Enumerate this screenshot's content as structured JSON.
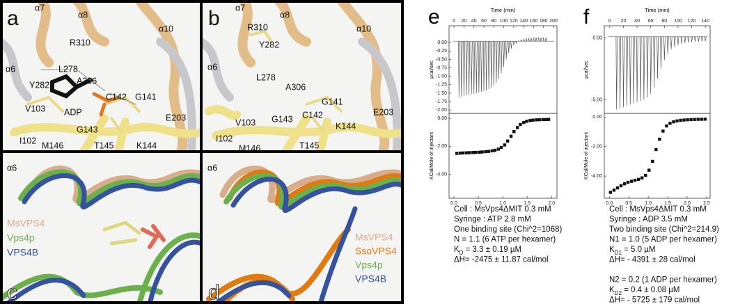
{
  "panels": [
    {
      "letter": "a",
      "labels": [
        "α7",
        "α8",
        "α10",
        "R310",
        "α6",
        "L278",
        "A306",
        "Y282",
        "C142",
        "G141",
        "ADP",
        "V103",
        "E203",
        "G143",
        "I102",
        "M146",
        "T145",
        "K144"
      ]
    },
    {
      "letter": "b",
      "labels": [
        "α7",
        "α8",
        "α10",
        "R310",
        "Y282",
        "α6",
        "L278",
        "A306",
        "G141",
        "C142",
        "V103",
        "G143",
        "E203",
        "K144",
        "I102",
        "M146",
        "T145"
      ]
    },
    {
      "letter": "c",
      "labels": [
        "α6"
      ],
      "legend": [
        {
          "name": "MsVPS4",
          "color": "#d8ad8c"
        },
        {
          "name": "Vps4p",
          "color": "#6cb04e"
        },
        {
          "name": "VPS4B",
          "color": "#34529e"
        }
      ]
    },
    {
      "letter": "d",
      "labels": [
        "α6"
      ],
      "legend": [
        {
          "name": "MsVPS4",
          "color": "#d8ad8c"
        },
        {
          "name": "SsoVPS4",
          "color": "#e07b12"
        },
        {
          "name": "Vps4p",
          "color": "#6cb04e"
        },
        {
          "name": "VPS4B",
          "color": "#34529e"
        }
      ]
    }
  ],
  "chart_data": [
    {
      "type": "spikes",
      "panel_label": "e",
      "x_label": "Time (min)",
      "y_label": "µcal/sec",
      "color": "#555555",
      "x": [
        10,
        15,
        20,
        25,
        30,
        35,
        40,
        45,
        50,
        55,
        60,
        65,
        70,
        75,
        80,
        85,
        90,
        95,
        100,
        105,
        110,
        115,
        120,
        125,
        130,
        135,
        140,
        145,
        150,
        155,
        160,
        165,
        170,
        175,
        180,
        185
      ],
      "values": [
        -1.62,
        -1.6,
        -1.58,
        -1.56,
        -1.55,
        -1.53,
        -1.52,
        -1.5,
        -1.48,
        -1.46,
        -1.44,
        -1.42,
        -1.38,
        -1.34,
        -1.28,
        -1.2,
        -1.08,
        -0.92,
        -0.72,
        -0.5,
        -0.32,
        -0.18,
        -0.08,
        -0.02,
        0.05,
        0.08,
        0.1,
        0.12,
        0.13,
        0.14,
        0.14,
        0.15,
        0.15,
        0.15,
        0.15,
        0.15
      ],
      "xlim": [
        -10,
        207
      ],
      "ylim": [
        -2.1,
        0.5
      ],
      "xticks": [
        0,
        20,
        40,
        60,
        80,
        100,
        120,
        140,
        160,
        180,
        200
      ],
      "yticks": [
        {
          "value": 0,
          "label": "0.00"
        },
        -0.25,
        {
          "value": -0.5,
          "label": "-0.50"
        },
        -0.75,
        {
          "value": -1,
          "label": "-1.00"
        },
        -1.25,
        {
          "value": -1.5,
          "label": "-1.50"
        },
        -1.75,
        {
          "value": -2,
          "label": "-2.00"
        }
      ]
    },
    {
      "type": "scatter",
      "y_label": "KCal/Mole of injectant",
      "color": "#111111",
      "x": [
        0.06,
        0.13,
        0.19,
        0.26,
        0.32,
        0.39,
        0.45,
        0.52,
        0.58,
        0.65,
        0.71,
        0.78,
        0.84,
        0.91,
        0.97,
        1.04,
        1.1,
        1.17,
        1.23,
        1.3,
        1.36,
        1.43,
        1.49,
        1.56,
        1.62,
        1.69,
        1.75,
        1.82,
        1.88,
        1.94
      ],
      "values": [
        -2.5,
        -2.48,
        -2.47,
        -2.46,
        -2.45,
        -2.44,
        -2.43,
        -2.42,
        -2.4,
        -2.38,
        -2.36,
        -2.32,
        -2.28,
        -2.2,
        -2.08,
        -1.9,
        -1.62,
        -1.28,
        -0.95,
        -0.66,
        -0.44,
        -0.3,
        -0.21,
        -0.16,
        -0.13,
        -0.11,
        -0.1,
        -0.09,
        -0.09,
        -0.08
      ],
      "xlim": [
        -0.1,
        2.11
      ],
      "ylim": [
        -5.7,
        0.35
      ],
      "xticks": [
        {
          "value": 0,
          "label": "0.0"
        },
        0.5,
        {
          "value": 1,
          "label": "1.0"
        },
        1.5,
        {
          "value": 2,
          "label": "2.0"
        }
      ],
      "yticks": [
        {
          "value": 0,
          "label": "0.00"
        },
        {
          "value": -2,
          "label": "-2.00"
        },
        {
          "value": -4,
          "label": "-4.00"
        }
      ],
      "results": [
        "Cell : MsVps4ΔMIT 0.3 mM",
        "Syringe : ATP 2.8 mM",
        "One binding site (Chi^2=1068)",
        "N = 1.1 (6 ATP per hexamer)",
        {
          "pre": "K",
          "sub": "D",
          "post": " = 3.3 ± 0.19 µM"
        },
        "ΔH= -2475 ± 11.87 cal/mol"
      ]
    },
    {
      "type": "spikes",
      "panel_label": "f",
      "x_label": "Time (min)",
      "y_label": "µcal/sec",
      "color": "#555555",
      "x": [
        10,
        15,
        20,
        25,
        30,
        35,
        40,
        45,
        50,
        55,
        60,
        65,
        70,
        75,
        80,
        85,
        90,
        95,
        100,
        105,
        110,
        115,
        120,
        125,
        130,
        135,
        140
      ],
      "values": [
        -5.8,
        -5.7,
        -5.6,
        -5.5,
        -5.4,
        -5.3,
        -5.2,
        -5.1,
        -5.0,
        -4.8,
        -4.5,
        -4.0,
        -3.3,
        -2.5,
        -1.8,
        -1.3,
        -0.9,
        -0.7,
        -0.55,
        -0.45,
        -0.4,
        -0.35,
        -0.32,
        -0.3,
        -0.28,
        -0.27,
        -0.26
      ],
      "xlim": [
        -8,
        147
      ],
      "ylim": [
        -6.1,
        1.0
      ],
      "xticks": [
        0,
        20,
        40,
        60,
        80,
        100,
        120,
        140
      ],
      "yticks": [
        {
          "value": 0,
          "label": "0.00"
        },
        {
          "value": -5,
          "label": "-5.00"
        }
      ]
    },
    {
      "type": "scatter",
      "y_label": "KCal/Mole of injectant",
      "color": "#111111",
      "x": [
        0.03,
        0.12,
        0.21,
        0.3,
        0.39,
        0.48,
        0.57,
        0.66,
        0.75,
        0.84,
        0.93,
        1.02,
        1.11,
        1.2,
        1.29,
        1.38,
        1.47,
        1.56,
        1.65,
        1.74,
        1.83,
        1.92,
        2.01,
        2.1,
        2.19,
        2.28,
        2.37,
        2.46
      ],
      "values": [
        -5.1,
        -4.95,
        -4.8,
        -4.65,
        -4.52,
        -4.42,
        -4.35,
        -4.28,
        -4.22,
        -4.12,
        -3.95,
        -3.6,
        -3.0,
        -2.2,
        -1.5,
        -0.95,
        -0.6,
        -0.42,
        -0.32,
        -0.26,
        -0.22,
        -0.2,
        -0.18,
        -0.17,
        -0.16,
        -0.15,
        -0.15,
        -0.14
      ],
      "xlim": [
        -0.13,
        2.59
      ],
      "ylim": [
        -5.5,
        0.25
      ],
      "xticks": [
        {
          "value": 0,
          "label": "0.0"
        },
        0.5,
        {
          "value": 1,
          "label": "1.0"
        },
        1.5,
        {
          "value": 2,
          "label": "2.0"
        },
        2.5
      ],
      "yticks": [
        {
          "value": 0,
          "label": "0.00"
        },
        {
          "value": -2,
          "label": "-2.00"
        },
        {
          "value": -4,
          "label": "-4.00"
        }
      ],
      "results": [
        "Cell : MsVps4ΔMIT 0.3 mM",
        "Syringe : ADP 3.5 mM",
        "Two binding site (Chi^2=214.9)",
        "N1 = 1.0  (5 ADP per hexamer)",
        {
          "pre": "K",
          "sub": "D1",
          "post": " = 5.0 µM"
        },
        "ΔH= - 4391 ± 28 cal/mol"
      ],
      "results2": [
        "N2 = 0.2  (1 ADP per hexamer)",
        {
          "pre": "K",
          "sub": "D2",
          "post": " = 0.4 ± 0.08 µM"
        },
        "ΔH= - 5725 ±  179 cal/mol"
      ]
    }
  ]
}
